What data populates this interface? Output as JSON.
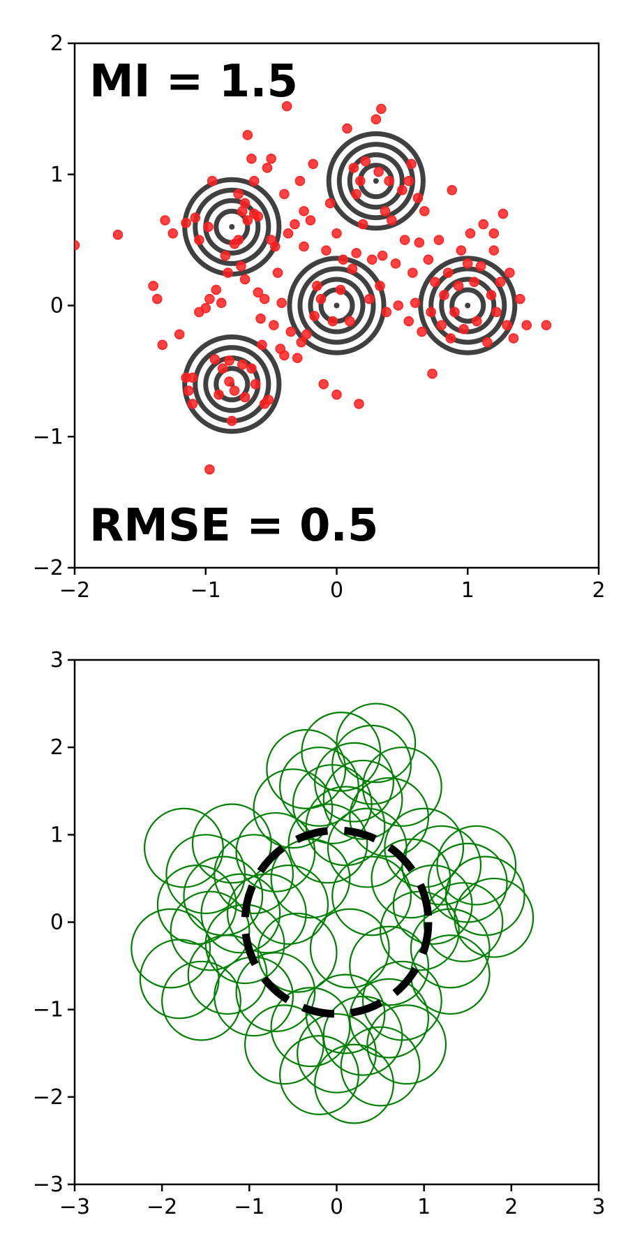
{
  "chart_data": [
    {
      "type": "scatter",
      "title": "",
      "xlabel": "",
      "ylabel": "",
      "xlim": [
        -2,
        2
      ],
      "ylim": [
        -2,
        2
      ],
      "grid": false,
      "xticks": [
        -2,
        -1,
        0,
        1,
        2
      ],
      "yticks": [
        -2,
        -1,
        0,
        1,
        2
      ],
      "xtick_labels": [
        "−2",
        "−1",
        "0",
        "1",
        "2"
      ],
      "ytick_labels": [
        "−2",
        "−1",
        "0",
        "1",
        "2"
      ],
      "annotations": [
        "MI = 1.5",
        "RMSE = 0.5"
      ],
      "contour_centers": [
        [
          -0.8,
          0.6
        ],
        [
          0.3,
          0.95
        ],
        [
          0,
          0
        ],
        [
          1,
          0
        ],
        [
          -0.8,
          -0.6
        ]
      ],
      "contour_radii": [
        0.12,
        0.2,
        0.28,
        0.36
      ],
      "colors": {
        "points": "#ff2020",
        "contour": "#404040"
      },
      "points": [
        [
          -2.0,
          0.46
        ],
        [
          -1.67,
          0.54
        ],
        [
          -1.4,
          0.15
        ],
        [
          -1.37,
          0.05
        ],
        [
          -1.33,
          -0.3
        ],
        [
          -1.31,
          0.65
        ],
        [
          -1.25,
          0.55
        ],
        [
          -1.2,
          -0.22
        ],
        [
          -1.15,
          0.63
        ],
        [
          -1.15,
          -0.55
        ],
        [
          -1.13,
          -0.65
        ],
        [
          -1.1,
          -0.55
        ],
        [
          -1.1,
          -0.75
        ],
        [
          -1.08,
          0.67
        ],
        [
          -1.05,
          0.5
        ],
        [
          -1.05,
          -0.05
        ],
        [
          -1.0,
          -0.02
        ],
        [
          -0.98,
          0.6
        ],
        [
          -0.97,
          0.05
        ],
        [
          -0.95,
          0.95
        ],
        [
          -0.93,
          -0.41
        ],
        [
          -0.92,
          0.12
        ],
        [
          -0.9,
          -0.68
        ],
        [
          -0.87,
          -0.48
        ],
        [
          -0.85,
          0.38
        ],
        [
          -0.83,
          0.25
        ],
        [
          -0.82,
          -0.42
        ],
        [
          -0.82,
          -0.58
        ],
        [
          -0.8,
          -0.88
        ],
        [
          -0.78,
          0.47
        ],
        [
          -0.78,
          -0.65
        ],
        [
          -0.75,
          0.85
        ],
        [
          -0.75,
          0.5
        ],
        [
          -0.73,
          0.3
        ],
        [
          -0.72,
          -0.45
        ],
        [
          -0.72,
          0.72
        ],
        [
          -0.7,
          0.78
        ],
        [
          -0.7,
          0.2
        ],
        [
          -0.68,
          1.3
        ],
        [
          -0.68,
          0.65
        ],
        [
          -0.65,
          1.12
        ],
        [
          -0.65,
          -0.48
        ],
        [
          -0.63,
          0.7
        ],
        [
          -0.63,
          0.95
        ],
        [
          -0.62,
          -0.6
        ],
        [
          -0.6,
          0.68
        ],
        [
          -0.6,
          0.1
        ],
        [
          -0.58,
          -0.1
        ],
        [
          -0.57,
          -0.3
        ],
        [
          -0.55,
          -0.75
        ],
        [
          -0.55,
          0.05
        ],
        [
          -0.53,
          1.05
        ],
        [
          -0.52,
          -0.72
        ],
        [
          -0.5,
          1.12
        ],
        [
          -0.5,
          0.5
        ],
        [
          -0.48,
          -0.15
        ],
        [
          -0.47,
          0.45
        ],
        [
          -0.45,
          0.25
        ],
        [
          -0.43,
          -0.33
        ],
        [
          -0.42,
          0.02
        ],
        [
          -0.4,
          0.85
        ],
        [
          -0.4,
          -0.38
        ],
        [
          -0.38,
          1.52
        ],
        [
          -0.37,
          0.55
        ],
        [
          -0.35,
          -0.2
        ],
        [
          -0.32,
          0.62
        ],
        [
          -0.3,
          -0.4
        ],
        [
          -0.28,
          0.95
        ],
        [
          -0.27,
          -0.28
        ],
        [
          -0.25,
          0.72
        ],
        [
          -0.23,
          -0.22
        ],
        [
          -0.2,
          0.65
        ],
        [
          -0.18,
          1.08
        ],
        [
          -0.17,
          -0.08
        ],
        [
          -0.15,
          0.15
        ],
        [
          -0.12,
          0.05
        ],
        [
          -0.1,
          -0.6
        ],
        [
          -0.08,
          0.42
        ],
        [
          -0.05,
          0.78
        ],
        [
          -0.03,
          -0.12
        ],
        [
          0.0,
          -0.68
        ],
        [
          0.0,
          0.55
        ],
        [
          0.03,
          0.12
        ],
        [
          0.05,
          0.35
        ],
        [
          0.08,
          1.35
        ],
        [
          0.1,
          -0.12
        ],
        [
          0.12,
          0.28
        ],
        [
          0.13,
          1.05
        ],
        [
          0.15,
          0.85
        ],
        [
          0.17,
          -0.75
        ],
        [
          0.18,
          0.95
        ],
        [
          0.2,
          0.62
        ],
        [
          0.22,
          1.1
        ],
        [
          0.25,
          0.05
        ],
        [
          0.27,
          0.35
        ],
        [
          0.3,
          1.42
        ],
        [
          0.32,
          1.02
        ],
        [
          0.33,
          0.15
        ],
        [
          0.35,
          0.38
        ],
        [
          0.37,
          0.72
        ],
        [
          0.38,
          -0.05
        ],
        [
          0.4,
          0.95
        ],
        [
          0.42,
          0.65
        ],
        [
          0.45,
          0.32
        ],
        [
          0.47,
          0.0
        ],
        [
          0.5,
          0.88
        ],
        [
          0.52,
          0.5
        ],
        [
          0.55,
          -0.12
        ],
        [
          0.57,
          1.08
        ],
        [
          0.58,
          0.25
        ],
        [
          0.6,
          0.02
        ],
        [
          0.62,
          0.82
        ],
        [
          0.63,
          0.48
        ],
        [
          0.65,
          -0.2
        ],
        [
          0.67,
          0.72
        ],
        [
          0.7,
          0.35
        ],
        [
          0.72,
          -0.05
        ],
        [
          0.73,
          -0.52
        ],
        [
          0.75,
          0.18
        ],
        [
          0.78,
          0.5
        ],
        [
          0.8,
          -0.15
        ],
        [
          0.82,
          0.08
        ],
        [
          0.85,
          0.25
        ],
        [
          0.87,
          -0.25
        ],
        [
          0.88,
          0.88
        ],
        [
          0.9,
          -0.05
        ],
        [
          0.93,
          0.15
        ],
        [
          0.95,
          0.42
        ],
        [
          0.97,
          -0.18
        ],
        [
          1.0,
          0.32
        ],
        [
          1.02,
          0.55
        ],
        [
          1.05,
          0.18
        ],
        [
          1.07,
          -0.12
        ],
        [
          1.1,
          0.3
        ],
        [
          1.12,
          0.62
        ],
        [
          1.15,
          -0.28
        ],
        [
          1.18,
          0.08
        ],
        [
          1.2,
          0.42
        ],
        [
          1.22,
          -0.05
        ],
        [
          1.25,
          0.18
        ],
        [
          1.27,
          0.7
        ],
        [
          1.3,
          -0.15
        ],
        [
          1.32,
          0.25
        ],
        [
          1.35,
          -0.25
        ],
        [
          1.4,
          0.05
        ],
        [
          1.45,
          -0.15
        ],
        [
          1.6,
          -0.15
        ],
        [
          -0.97,
          -1.25
        ],
        [
          0.34,
          1.5
        ],
        [
          -0.7,
          -0.7
        ],
        [
          -0.88,
          0.02
        ],
        [
          0.15,
          0.4
        ],
        [
          -0.25,
          0.45
        ],
        [
          0.55,
          0.95
        ],
        [
          1.2,
          0.55
        ]
      ]
    },
    {
      "type": "scatter",
      "title": "",
      "xlabel": "",
      "ylabel": "",
      "xlim": [
        -3,
        3
      ],
      "ylim": [
        -3,
        3
      ],
      "grid": false,
      "xticks": [
        -3,
        -2,
        -1,
        0,
        1,
        2,
        3
      ],
      "yticks": [
        -3,
        -2,
        -1,
        0,
        1,
        2,
        3
      ],
      "xtick_labels": [
        "−3",
        "−2",
        "−1",
        "0",
        "1",
        "2",
        "3"
      ],
      "ytick_labels": [
        "−3",
        "−2",
        "−1",
        "0",
        "1",
        "2",
        "3"
      ],
      "reference_circle": {
        "center": [
          0,
          0
        ],
        "radius": 1.05,
        "style": "dashed",
        "color": "#000000"
      },
      "circle_radius": 0.45,
      "colors": {
        "circles": "#008000"
      },
      "circle_centers": [
        [
          0.4,
          1.8
        ],
        [
          0.45,
          2.05
        ],
        [
          0.05,
          1.95
        ],
        [
          -0.35,
          1.75
        ],
        [
          0.75,
          1.55
        ],
        [
          -0.2,
          1.55
        ],
        [
          0.3,
          1.4
        ],
        [
          0.6,
          1.2
        ],
        [
          -0.5,
          1.3
        ],
        [
          0.1,
          1.1
        ],
        [
          -1.75,
          0.85
        ],
        [
          -1.5,
          0.55
        ],
        [
          -1.3,
          0.3
        ],
        [
          -1.6,
          0.2
        ],
        [
          -1.2,
          0.9
        ],
        [
          -1.45,
          -0.1
        ],
        [
          -0.95,
          0.55
        ],
        [
          -0.8,
          0.1
        ],
        [
          -1.05,
          -0.25
        ],
        [
          -0.7,
          0.8
        ],
        [
          -1.8,
          -0.65
        ],
        [
          -1.9,
          -0.3
        ],
        [
          -1.55,
          -0.9
        ],
        [
          -1.25,
          -0.6
        ],
        [
          -0.95,
          -0.85
        ],
        [
          1.2,
          0.65
        ],
        [
          1.5,
          0.45
        ],
        [
          1.7,
          0.3
        ],
        [
          1.45,
          0.0
        ],
        [
          1.1,
          0.2
        ],
        [
          1.8,
          0.05
        ],
        [
          1.3,
          -0.3
        ],
        [
          0.95,
          -0.1
        ],
        [
          1.6,
          0.65
        ],
        [
          1.0,
          0.85
        ],
        [
          0.3,
          -1.3
        ],
        [
          0.0,
          -1.5
        ],
        [
          -0.3,
          -1.2
        ],
        [
          0.5,
          -1.65
        ],
        [
          0.2,
          -1.85
        ],
        [
          -0.2,
          -1.75
        ],
        [
          0.8,
          -1.4
        ],
        [
          -0.6,
          -1.4
        ],
        [
          0.6,
          -1.1
        ],
        [
          0.1,
          -1.05
        ],
        [
          0.4,
          0.3
        ],
        [
          -0.3,
          0.5
        ],
        [
          0.15,
          -0.3
        ],
        [
          -0.45,
          -0.35
        ],
        [
          0.6,
          -0.5
        ],
        [
          -0.1,
          0.9
        ],
        [
          0.85,
          0.5
        ],
        [
          -0.7,
          -0.8
        ],
        [
          0.35,
          0.85
        ],
        [
          -0.55,
          0.2
        ],
        [
          0.2,
          1.6
        ],
        [
          -0.05,
          1.35
        ],
        [
          1.3,
          -0.6
        ],
        [
          -1.1,
          0.1
        ],
        [
          0.75,
          -0.9
        ]
      ]
    }
  ]
}
